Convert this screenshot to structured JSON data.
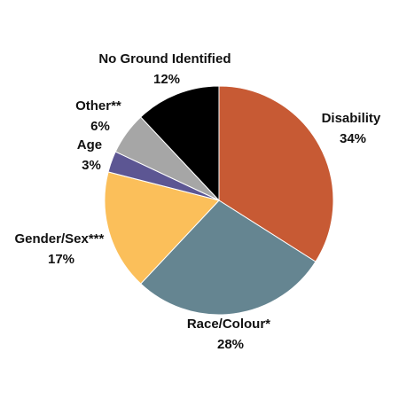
{
  "chart_data": {
    "type": "pie",
    "title": "",
    "start": "12 o'clock",
    "direction": "clockwise",
    "slices": [
      {
        "label": "Disability",
        "pct_text": "34%",
        "value": 34,
        "color": "#c75a34"
      },
      {
        "label": "Race/Colour*",
        "pct_text": "28%",
        "value": 28,
        "color": "#658591"
      },
      {
        "label": "Gender/Sex***",
        "pct_text": "17%",
        "value": 17,
        "color": "#fbbf5a"
      },
      {
        "label": "Age",
        "pct_text": "3%",
        "value": 3,
        "color": "#5c5693"
      },
      {
        "label": "Other**",
        "pct_text": "6%",
        "value": 6,
        "color": "#a6a6a6"
      },
      {
        "label": "No Ground Identified",
        "pct_text": "12%",
        "value": 12,
        "color": "#000000"
      }
    ]
  }
}
